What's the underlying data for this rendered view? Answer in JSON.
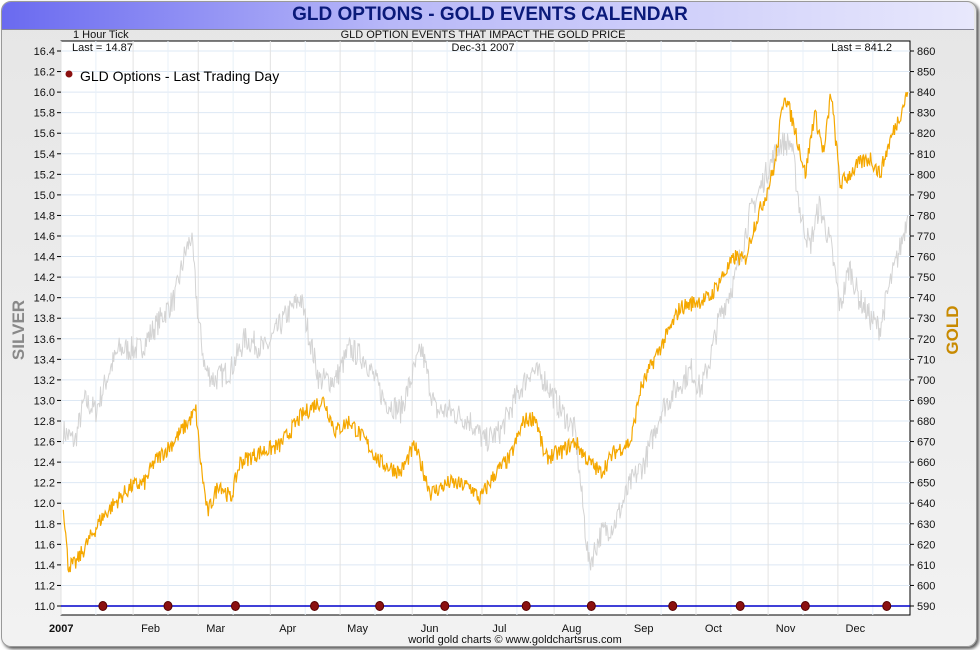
{
  "header": {
    "title": "GLD OPTIONS - GOLD EVENTS CALENDAR"
  },
  "chart_data": {
    "type": "line",
    "title": "GLD OPTIONS - GOLD EVENTS CALENDAR",
    "subtitle": "GLD OPTION EVENTS THAT IMPACT THE GOLD PRICE",
    "tick_label": "1 Hour Tick",
    "date_label": "Dec-31  2007",
    "last_silver": "Last = 14.87",
    "last_gold": "Last = 841.2",
    "ylabel_left": "SILVER",
    "ylabel_right": "GOLD",
    "footer": "world gold charts © www.goldchartsrus.com",
    "legend": "GLD Options - Last Trading Day",
    "x_ticks": [
      {
        "day": 0,
        "label": "2007"
      },
      {
        "day": 31,
        "label": "Feb"
      },
      {
        "day": 59,
        "label": "Mar"
      },
      {
        "day": 90,
        "label": "Apr"
      },
      {
        "day": 120,
        "label": "May"
      },
      {
        "day": 151,
        "label": "Jun"
      },
      {
        "day": 181,
        "label": "Jul"
      },
      {
        "day": 212,
        "label": "Aug"
      },
      {
        "day": 243,
        "label": "Sep"
      },
      {
        "day": 273,
        "label": "Oct"
      },
      {
        "day": 304,
        "label": "Nov"
      },
      {
        "day": 334,
        "label": "Dec"
      }
    ],
    "ylim_left": [
      11.0,
      16.4
    ],
    "ylim_right": [
      590,
      860
    ],
    "y_ticks_left": [
      "11.0",
      "11.2",
      "11.4",
      "11.6",
      "11.8",
      "12.0",
      "12.2",
      "12.4",
      "12.6",
      "12.8",
      "13.0",
      "13.2",
      "13.4",
      "13.6",
      "13.8",
      "14.0",
      "14.2",
      "14.4",
      "14.6",
      "14.8",
      "15.0",
      "15.2",
      "15.4",
      "15.6",
      "15.8",
      "16.0",
      "16.2",
      "16.4"
    ],
    "y_ticks_right": [
      "590",
      "600",
      "610",
      "620",
      "630",
      "640",
      "650",
      "660",
      "670",
      "680",
      "690",
      "700",
      "710",
      "720",
      "730",
      "740",
      "750",
      "760",
      "770",
      "780",
      "790",
      "800",
      "810",
      "820",
      "830",
      "840",
      "850",
      "860"
    ],
    "colors": {
      "gold": "#f5a800",
      "silver": "#d4d4d4",
      "event": "#8b1010",
      "baseline": "#0000cc"
    },
    "series": [
      {
        "name": "Gold",
        "axis": "right",
        "days": [
          1,
          3,
          6,
          12,
          17,
          23,
          30,
          36,
          40,
          47,
          55,
          58,
          60,
          63,
          68,
          73,
          77,
          86,
          94,
          103,
          109,
          113,
          118,
          124,
          131,
          137,
          146,
          152,
          159,
          167,
          176,
          180,
          187,
          193,
          199,
          204,
          208,
          215,
          221,
          227,
          232,
          238,
          245,
          249,
          255,
          262,
          266,
          273,
          279,
          283,
          290,
          294,
          298,
          303,
          307,
          311,
          316,
          320,
          324,
          328,
          331,
          335,
          339,
          343,
          348,
          352,
          356,
          361,
          364
        ],
        "values": [
          640,
          610,
          610,
          622,
          632,
          640,
          648,
          650,
          660,
          668,
          680,
          685,
          660,
          635,
          650,
          642,
          660,
          665,
          668,
          682,
          688,
          690,
          675,
          680,
          670,
          660,
          655,
          668,
          645,
          650,
          648,
          642,
          655,
          662,
          680,
          682,
          662,
          665,
          670,
          660,
          655,
          665,
          670,
          695,
          710,
          725,
          735,
          738,
          740,
          748,
          760,
          758,
          775,
          790,
          805,
          840,
          820,
          800,
          830,
          810,
          840,
          795,
          800,
          805,
          808,
          800,
          815,
          830,
          840
        ]
      },
      {
        "name": "Silver",
        "axis": "left",
        "days": [
          1,
          6,
          10,
          15,
          21,
          25,
          34,
          43,
          49,
          53,
          56,
          59,
          62,
          66,
          73,
          79,
          88,
          96,
          103,
          107,
          111,
          118,
          124,
          131,
          139,
          146,
          155,
          161,
          167,
          176,
          182,
          189,
          195,
          202,
          208,
          215,
          221,
          227,
          232,
          238,
          245,
          251,
          258,
          264,
          271,
          275,
          279,
          283,
          290,
          296,
          303,
          309,
          314,
          318,
          322,
          326,
          331,
          335,
          339,
          343,
          348,
          352,
          356,
          361,
          364
        ],
        "values": [
          12.7,
          12.6,
          13.0,
          12.9,
          13.3,
          13.5,
          13.5,
          13.8,
          14.0,
          14.4,
          14.6,
          13.8,
          13.3,
          13.2,
          13.3,
          13.6,
          13.5,
          13.8,
          14.0,
          13.6,
          13.2,
          13.2,
          13.5,
          13.4,
          13.0,
          12.9,
          13.5,
          12.9,
          12.9,
          12.8,
          12.6,
          12.7,
          13.0,
          13.3,
          13.2,
          12.9,
          12.7,
          11.4,
          11.7,
          11.8,
          12.2,
          12.4,
          12.9,
          13.1,
          13.3,
          13.1,
          13.4,
          13.8,
          14.2,
          14.8,
          15.2,
          15.5,
          15.5,
          14.8,
          14.5,
          14.9,
          14.5,
          13.9,
          14.3,
          14.0,
          13.8,
          13.7,
          14.1,
          14.5,
          14.8
        ]
      }
    ],
    "events_days": [
      18,
      46,
      75,
      109,
      137,
      165,
      200,
      228,
      263,
      292,
      320,
      355
    ]
  }
}
